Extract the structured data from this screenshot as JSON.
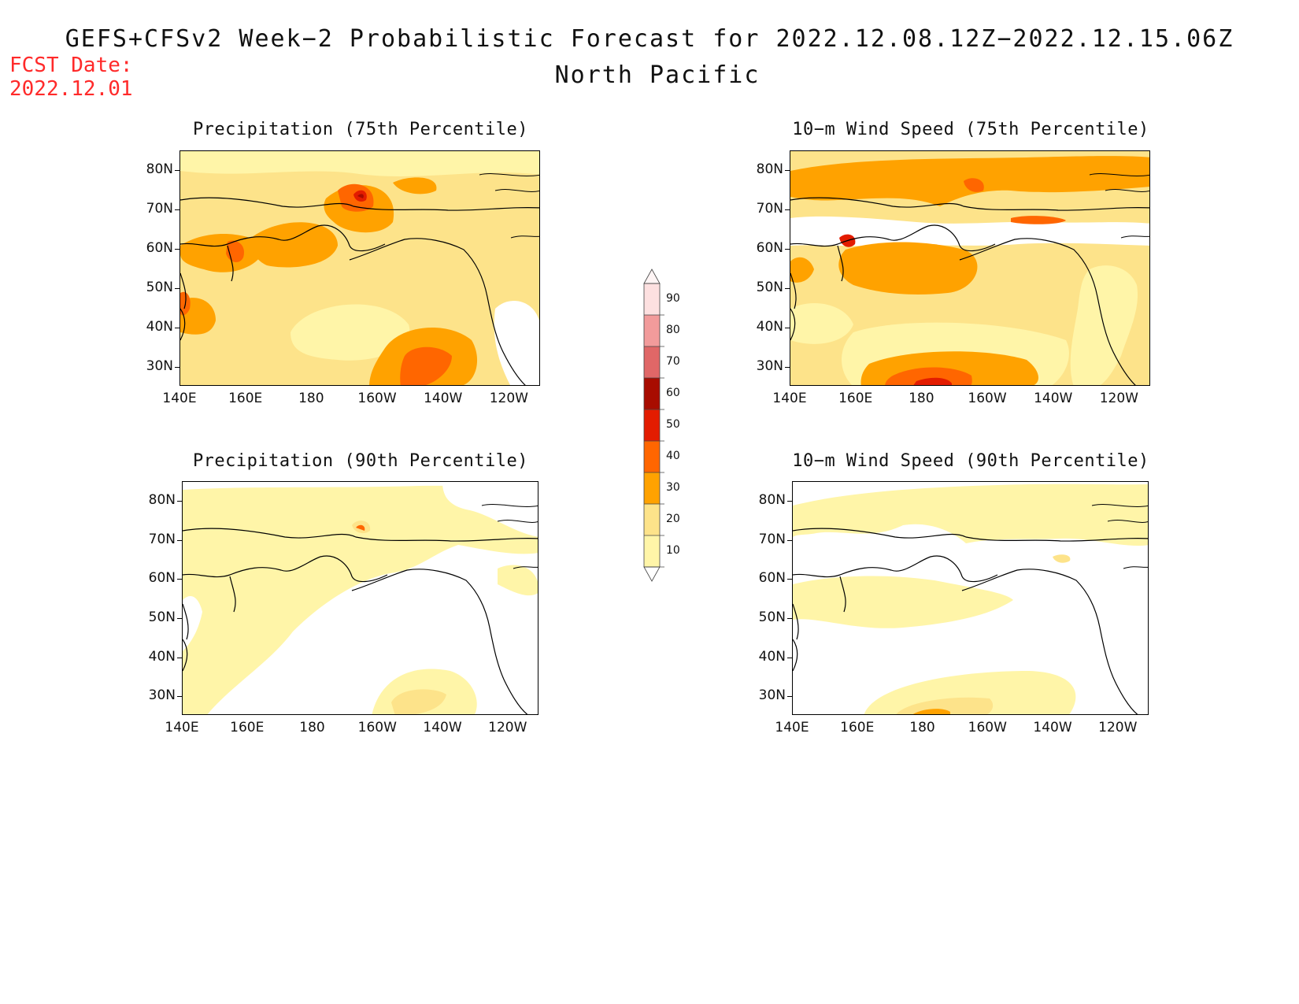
{
  "header": {
    "title": "GEFS+CFSv2 Week−2 Probabilistic Forecast for 2022.12.08.12Z−2022.12.15.06Z",
    "subtitle": "North Pacific",
    "fcst_label": "FCST Date:",
    "fcst_date": "2022.12.01"
  },
  "axes": {
    "lat_ticks": [
      "80N",
      "70N",
      "60N",
      "50N",
      "40N",
      "30N"
    ],
    "lon_ticks": [
      "140E",
      "160E",
      "180",
      "160W",
      "140W",
      "120W"
    ]
  },
  "panels": [
    {
      "id": "precip75",
      "title": "Precipitation (75th Percentile)"
    },
    {
      "id": "wind75",
      "title": "10−m Wind Speed (75th Percentile)"
    },
    {
      "id": "precip90",
      "title": "Precipitation (90th Percentile)"
    },
    {
      "id": "wind90",
      "title": "10−m Wind Speed (90th Percentile)"
    }
  ],
  "colorbar": {
    "levels": [
      "10",
      "20",
      "30",
      "40",
      "50",
      "60",
      "70",
      "80",
      "90"
    ],
    "colors": [
      "#fff5a8",
      "#fde38a",
      "#ffa200",
      "#ff6600",
      "#e31c00",
      "#a80c00",
      "#e06767",
      "#f29b9b",
      "#fde0e0"
    ]
  },
  "colors": {
    "c10": "#fff5a8",
    "c20": "#fde38a",
    "c30": "#ffa200",
    "c40": "#ff6600",
    "c50": "#e31c00",
    "c60": "#a80c00"
  }
}
